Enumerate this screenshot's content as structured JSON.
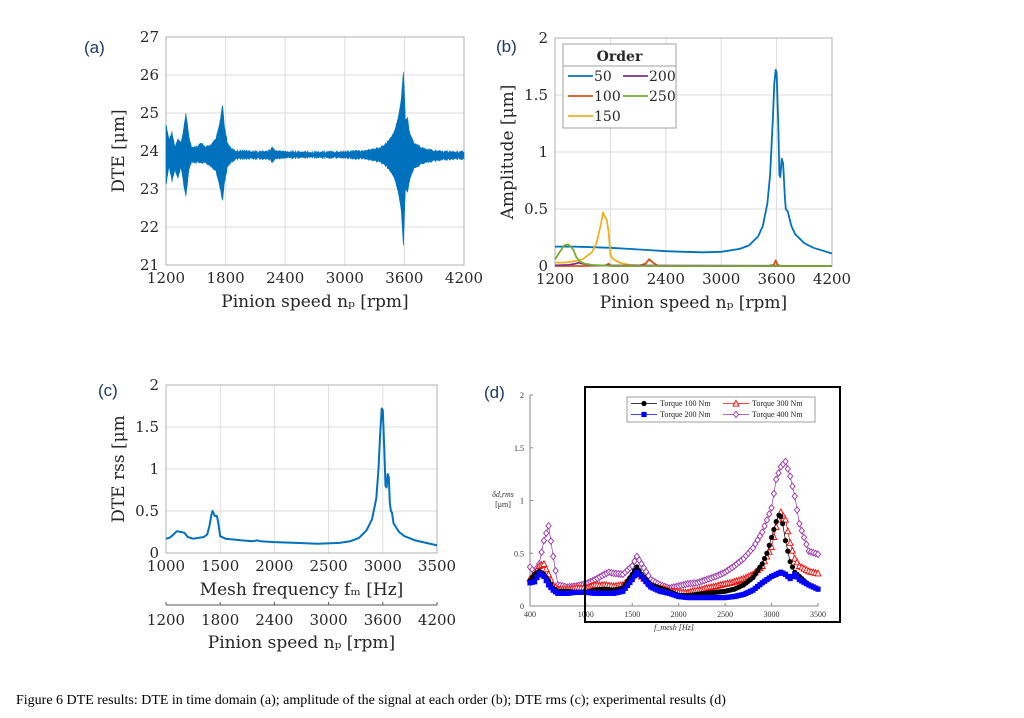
{
  "caption": "Figure 6 DTE results: DTE in time domain (a); amplitude of the signal at each order (b); DTE rms (c); experimental results (d)",
  "chart_data": [
    {
      "id": "a",
      "panel_label": "(a)",
      "type": "area",
      "title": "",
      "xlabel": "Pinion speed n_p [rpm]",
      "ylabel": "DTE [μm]",
      "xlim": [
        1200,
        4200
      ],
      "ylim": [
        21,
        27
      ],
      "xticks": [
        1200,
        1800,
        2400,
        3000,
        3600,
        4200
      ],
      "yticks": [
        21,
        22,
        23,
        24,
        25,
        26,
        27
      ],
      "grid": true,
      "color": "#0072BD",
      "envelope": {
        "x": [
          1200,
          1230,
          1260,
          1290,
          1320,
          1350,
          1380,
          1400,
          1430,
          1460,
          1500,
          1550,
          1600,
          1650,
          1700,
          1740,
          1770,
          1790,
          1820,
          1860,
          1900,
          1950,
          2000,
          2100,
          2200,
          2250,
          2270,
          2300,
          2400,
          2600,
          2800,
          3000,
          3200,
          3300,
          3400,
          3450,
          3500,
          3540,
          3570,
          3590,
          3600,
          3610,
          3630,
          3650,
          3670,
          3700,
          3730,
          3760,
          3800,
          3900,
          4000,
          4200
        ],
        "upper": [
          24.7,
          24.3,
          24.5,
          24.1,
          24.3,
          24.2,
          24.6,
          25.0,
          24.4,
          24.1,
          24.1,
          24.2,
          24.1,
          24.15,
          24.3,
          24.7,
          25.2,
          24.6,
          24.2,
          24.05,
          24.0,
          24.0,
          24.0,
          23.98,
          23.98,
          24.02,
          24.1,
          24.0,
          23.98,
          23.97,
          23.97,
          23.98,
          24.0,
          24.05,
          24.15,
          24.3,
          24.5,
          24.9,
          25.4,
          26.1,
          25.5,
          24.8,
          24.9,
          24.5,
          24.35,
          24.2,
          24.15,
          24.1,
          24.05,
          24.0,
          23.98,
          23.97
        ],
        "lower": [
          23.1,
          23.6,
          23.2,
          23.5,
          23.3,
          23.6,
          23.1,
          22.8,
          23.5,
          23.7,
          23.7,
          23.7,
          23.7,
          23.6,
          23.5,
          23.1,
          22.7,
          23.2,
          23.6,
          23.72,
          23.78,
          23.8,
          23.8,
          23.8,
          23.8,
          23.78,
          23.7,
          23.8,
          23.82,
          23.83,
          23.83,
          23.82,
          23.8,
          23.75,
          23.65,
          23.5,
          23.3,
          22.9,
          22.4,
          21.5,
          22.3,
          23.0,
          22.9,
          23.2,
          23.4,
          23.55,
          23.6,
          23.65,
          23.7,
          23.75,
          23.78,
          23.8
        ]
      }
    },
    {
      "id": "b",
      "panel_label": "(b)",
      "type": "line",
      "title": "",
      "xlabel": "Pinion speed n_p [rpm]",
      "ylabel": "Amplitude [μm]",
      "xlim": [
        1200,
        4200
      ],
      "ylim": [
        0,
        2
      ],
      "xticks": [
        1200,
        1800,
        2400,
        3000,
        3600,
        4200
      ],
      "yticks": [
        0,
        0.5,
        1,
        1.5,
        2
      ],
      "grid": true,
      "legend": {
        "title": "Order",
        "placement": "top-left"
      },
      "series": [
        {
          "name": "50",
          "color": "#0072BD",
          "x": [
            1200,
            1400,
            1600,
            1800,
            2000,
            2200,
            2400,
            2600,
            2800,
            3000,
            3200,
            3300,
            3400,
            3450,
            3500,
            3530,
            3560,
            3575,
            3590,
            3600,
            3620,
            3630,
            3640,
            3655,
            3670,
            3690,
            3700,
            3720,
            3760,
            3800,
            3900,
            4000,
            4200
          ],
          "y": [
            0.17,
            0.17,
            0.165,
            0.16,
            0.15,
            0.14,
            0.13,
            0.125,
            0.12,
            0.125,
            0.15,
            0.18,
            0.26,
            0.35,
            0.55,
            0.8,
            1.3,
            1.6,
            1.72,
            1.7,
            1.2,
            0.8,
            0.78,
            0.94,
            0.9,
            0.6,
            0.5,
            0.48,
            0.35,
            0.28,
            0.2,
            0.16,
            0.11
          ]
        },
        {
          "name": "100",
          "color": "#D95319",
          "x": [
            1200,
            1500,
            1750,
            1780,
            1800,
            1830,
            2100,
            2180,
            2220,
            2260,
            2320,
            3500,
            3570,
            3590,
            3610,
            3650,
            4200
          ],
          "y": [
            0.0,
            0.0,
            0.005,
            0.02,
            0.005,
            0.0,
            0.0,
            0.02,
            0.06,
            0.03,
            0.0,
            0.0,
            0.01,
            0.05,
            0.01,
            0.0,
            0.0
          ]
        },
        {
          "name": "150",
          "color": "#EDB120",
          "x": [
            1200,
            1300,
            1400,
            1500,
            1600,
            1650,
            1700,
            1720,
            1740,
            1760,
            1780,
            1800,
            1820,
            1850,
            1900,
            2000,
            2100,
            2200,
            2400,
            4200
          ],
          "y": [
            0.03,
            0.03,
            0.04,
            0.06,
            0.12,
            0.2,
            0.38,
            0.47,
            0.43,
            0.41,
            0.3,
            0.1,
            0.07,
            0.05,
            0.03,
            0.01,
            0.005,
            0.0,
            0.0,
            0.0
          ]
        },
        {
          "name": "200",
          "color": "#7E2F8E",
          "x": [
            1200,
            1350,
            1420,
            1460,
            1500,
            1600,
            4200
          ],
          "y": [
            0.005,
            0.01,
            0.02,
            0.03,
            0.02,
            0.005,
            0.0
          ]
        },
        {
          "name": "250",
          "color": "#77AC30",
          "x": [
            1200,
            1250,
            1300,
            1340,
            1370,
            1400,
            1430,
            1470,
            1520,
            1600,
            1700,
            1800,
            4200
          ],
          "y": [
            0.06,
            0.12,
            0.18,
            0.19,
            0.17,
            0.14,
            0.08,
            0.04,
            0.02,
            0.01,
            0.005,
            0.0,
            0.0
          ]
        }
      ]
    },
    {
      "id": "c",
      "panel_label": "(c)",
      "type": "line",
      "title": "",
      "xlabel": "Mesh frequency f_m [Hz]",
      "ylabel": "DTE rss [μm",
      "xlim": [
        1000,
        3500
      ],
      "ylim": [
        0,
        2
      ],
      "xticks": [
        1000,
        1500,
        2000,
        2500,
        3000,
        3500
      ],
      "yticks": [
        0,
        0.5,
        1,
        1.5,
        2
      ],
      "secondary_xaxis": {
        "label": "Pinion speed n_p [rpm]",
        "lim": [
          1200,
          4200
        ],
        "ticks": [
          1200,
          1800,
          2400,
          3000,
          3600,
          4200
        ]
      },
      "grid": true,
      "series": [
        {
          "name": "DTE rss",
          "color": "#0072BD",
          "x": [
            1000,
            1030,
            1060,
            1100,
            1140,
            1170,
            1200,
            1250,
            1300,
            1350,
            1380,
            1400,
            1420,
            1430,
            1450,
            1470,
            1480,
            1500,
            1550,
            1700,
            1800,
            1840,
            1870,
            2000,
            2200,
            2400,
            2600,
            2700,
            2780,
            2850,
            2900,
            2940,
            2960,
            2975,
            2990,
            3000,
            3015,
            3025,
            3035,
            3045,
            3055,
            3065,
            3075,
            3085,
            3100,
            3150,
            3200,
            3300,
            3400,
            3500
          ],
          "y": [
            0.17,
            0.18,
            0.21,
            0.26,
            0.25,
            0.24,
            0.19,
            0.17,
            0.18,
            0.19,
            0.22,
            0.32,
            0.46,
            0.5,
            0.44,
            0.44,
            0.38,
            0.2,
            0.17,
            0.15,
            0.14,
            0.15,
            0.14,
            0.13,
            0.12,
            0.11,
            0.12,
            0.14,
            0.18,
            0.27,
            0.4,
            0.65,
            1.0,
            1.4,
            1.72,
            1.7,
            1.2,
            0.8,
            0.78,
            0.94,
            0.9,
            0.6,
            0.5,
            0.48,
            0.35,
            0.25,
            0.2,
            0.15,
            0.12,
            0.09
          ]
        }
      ]
    },
    {
      "id": "d",
      "panel_label": "(d)",
      "type": "line",
      "title": "",
      "xlabel": "f_mesh [Hz]",
      "ylabel": "δ_d,rms [μm]",
      "xlim": [
        400,
        3500
      ],
      "ylim": [
        0,
        2
      ],
      "xticks": [
        400,
        1000,
        1500,
        2000,
        2500,
        3000,
        3500
      ],
      "yticks": [
        0,
        0.5,
        1,
        1.5,
        2
      ],
      "grid": false,
      "legend": {
        "placement": "top-right",
        "columns": 2
      },
      "annotation": "black rectangle highlighting 1000–3500 Hz range",
      "series": [
        {
          "name": "Torque 100 Nm",
          "color": "#000000",
          "marker": "filled-circle",
          "x": [
            400,
            450,
            500,
            550,
            600,
            650,
            700,
            800,
            900,
            1000,
            1100,
            1200,
            1300,
            1400,
            1500,
            1550,
            1600,
            1700,
            1800,
            1900,
            2000,
            2100,
            2200,
            2300,
            2400,
            2500,
            2600,
            2700,
            2800,
            2900,
            2950,
            3000,
            3050,
            3080,
            3100,
            3120,
            3150,
            3200,
            3250,
            3300,
            3400,
            3500
          ],
          "y": [
            0.24,
            0.3,
            0.33,
            0.3,
            0.24,
            0.17,
            0.14,
            0.14,
            0.13,
            0.13,
            0.15,
            0.16,
            0.15,
            0.17,
            0.3,
            0.37,
            0.3,
            0.2,
            0.17,
            0.14,
            0.1,
            0.1,
            0.11,
            0.12,
            0.13,
            0.14,
            0.16,
            0.2,
            0.27,
            0.4,
            0.5,
            0.65,
            0.8,
            0.86,
            0.85,
            0.78,
            0.62,
            0.42,
            0.32,
            0.28,
            0.2,
            0.16
          ]
        },
        {
          "name": "Torque 200 Nm",
          "color": "#0000FF",
          "marker": "filled-square",
          "x": [
            400,
            450,
            500,
            550,
            600,
            650,
            700,
            800,
            900,
            1000,
            1100,
            1200,
            1300,
            1400,
            1500,
            1550,
            1600,
            1700,
            1800,
            1900,
            2000,
            2100,
            2200,
            2300,
            2400,
            2500,
            2600,
            2700,
            2800,
            2900,
            3000,
            3100,
            3150,
            3200,
            3250,
            3300,
            3400,
            3500
          ],
          "y": [
            0.22,
            0.23,
            0.31,
            0.28,
            0.2,
            0.15,
            0.12,
            0.12,
            0.13,
            0.13,
            0.12,
            0.12,
            0.12,
            0.14,
            0.25,
            0.32,
            0.28,
            0.18,
            0.14,
            0.12,
            0.09,
            0.08,
            0.08,
            0.08,
            0.08,
            0.08,
            0.09,
            0.11,
            0.15,
            0.22,
            0.28,
            0.32,
            0.3,
            0.26,
            0.3,
            0.25,
            0.2,
            0.16
          ]
        },
        {
          "name": "Torque 300 Nm",
          "color": "#FF0000",
          "marker": "open-triangle",
          "x": [
            400,
            450,
            500,
            550,
            600,
            650,
            700,
            800,
            900,
            1000,
            1100,
            1200,
            1300,
            1400,
            1500,
            1550,
            1600,
            1700,
            1800,
            1900,
            2000,
            2100,
            2200,
            2300,
            2400,
            2500,
            2600,
            2700,
            2800,
            2900,
            3000,
            3050,
            3100,
            3150,
            3200,
            3250,
            3300,
            3400,
            3500
          ],
          "y": [
            0.26,
            0.3,
            0.38,
            0.4,
            0.3,
            0.2,
            0.16,
            0.16,
            0.17,
            0.17,
            0.2,
            0.2,
            0.19,
            0.2,
            0.28,
            0.32,
            0.28,
            0.2,
            0.17,
            0.15,
            0.13,
            0.13,
            0.15,
            0.17,
            0.19,
            0.21,
            0.23,
            0.26,
            0.3,
            0.38,
            0.56,
            0.75,
            0.89,
            0.82,
            0.6,
            0.45,
            0.38,
            0.33,
            0.31
          ]
        },
        {
          "name": "Torque 400 Nm",
          "color": "#9933AA",
          "marker": "open-diamond",
          "x": [
            400,
            450,
            500,
            550,
            600,
            650,
            700,
            800,
            900,
            1000,
            1100,
            1200,
            1250,
            1300,
            1400,
            1500,
            1550,
            1600,
            1700,
            1800,
            1900,
            2000,
            2100,
            2200,
            2300,
            2400,
            2500,
            2600,
            2700,
            2800,
            2900,
            3000,
            3050,
            3100,
            3150,
            3200,
            3250,
            3300,
            3400,
            3500
          ],
          "y": [
            0.37,
            0.32,
            0.4,
            0.62,
            0.76,
            0.47,
            0.2,
            0.18,
            0.19,
            0.21,
            0.25,
            0.3,
            0.32,
            0.31,
            0.3,
            0.38,
            0.47,
            0.4,
            0.25,
            0.2,
            0.17,
            0.19,
            0.21,
            0.22,
            0.25,
            0.28,
            0.32,
            0.38,
            0.45,
            0.55,
            0.7,
            0.93,
            1.2,
            1.32,
            1.37,
            1.23,
            1.04,
            0.78,
            0.52,
            0.49
          ]
        }
      ]
    }
  ]
}
